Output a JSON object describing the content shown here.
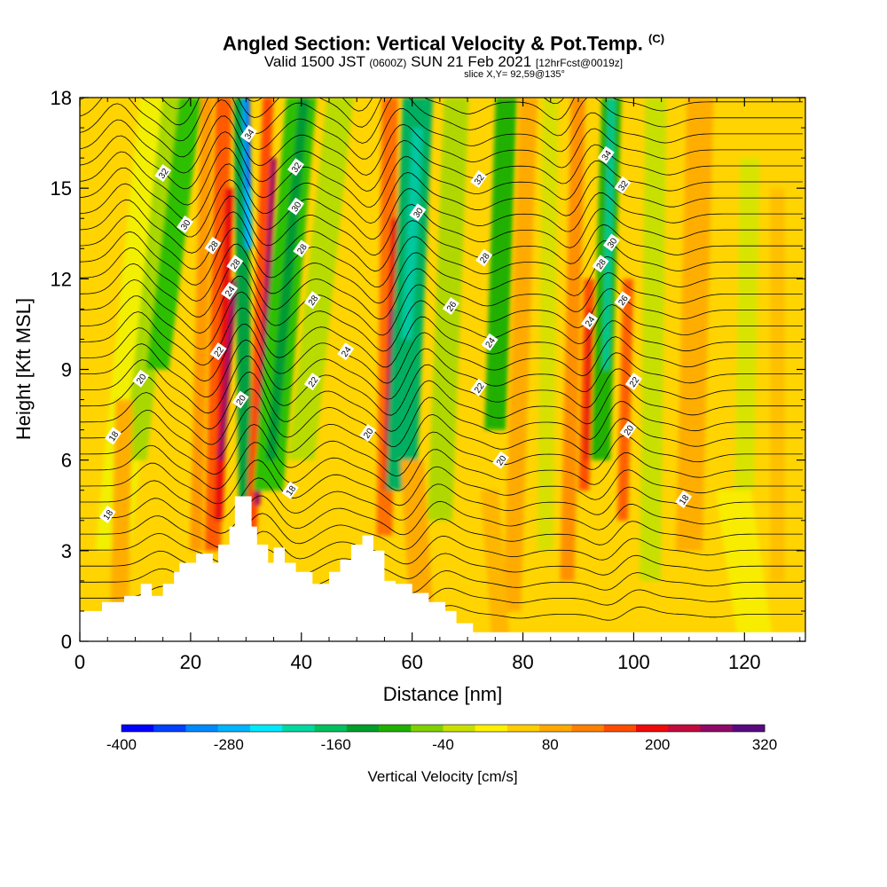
{
  "title": {
    "main": "Angled Section: Vertical Velocity & Pot.Temp.",
    "main_unit": "(C)",
    "valid_prefix": "Valid 1500 JST",
    "valid_zulu": "(0600Z)",
    "valid_date": "SUN 21 Feb 2021",
    "forecast": "[12hrFcst@0019z]",
    "slice": "slice X,Y= 92,59@135°"
  },
  "chart_data": {
    "type": "heatmap",
    "xlabel": "Distance [nm]",
    "ylabel": "Height [Kft MSL]",
    "xlim": [
      0,
      131
    ],
    "ylim": [
      0,
      18
    ],
    "x_ticks": [
      "0",
      "20",
      "40",
      "60",
      "80",
      "100",
      "120"
    ],
    "y_ticks": [
      "0",
      "3",
      "6",
      "9",
      "12",
      "15",
      "18"
    ],
    "colorbar": {
      "label": "Vertical Velocity [cm/s]",
      "tick_labels": [
        "-400",
        "-280",
        "-160",
        "-40",
        "80",
        "200",
        "320"
      ],
      "levels": [
        -400,
        -360,
        -320,
        -280,
        -240,
        -200,
        -160,
        -120,
        -80,
        -40,
        0,
        40,
        80,
        120,
        160,
        200,
        240,
        280,
        320
      ],
      "colors": [
        "#0000ff",
        "#0040ff",
        "#0088ff",
        "#00b4ff",
        "#00e8ff",
        "#00d8a0",
        "#00c060",
        "#009e2a",
        "#20b000",
        "#80d000",
        "#c8e000",
        "#fff000",
        "#ffcc00",
        "#ffa800",
        "#ff8000",
        "#ff4c00",
        "#ee0a0a",
        "#c20a3c",
        "#900a68",
        "#5a0a80"
      ]
    },
    "terrain_kft": [
      [
        0,
        1
      ],
      [
        4,
        1
      ],
      [
        4,
        1.3
      ],
      [
        8,
        1.3
      ],
      [
        8,
        1.5
      ],
      [
        11,
        1.5
      ],
      [
        11,
        1.9
      ],
      [
        13,
        1.9
      ],
      [
        13,
        1.5
      ],
      [
        15,
        1.5
      ],
      [
        15,
        1.9
      ],
      [
        17,
        1.9
      ],
      [
        17,
        2.3
      ],
      [
        18,
        2.3
      ],
      [
        18,
        2.6
      ],
      [
        21,
        2.6
      ],
      [
        21,
        2.9
      ],
      [
        24,
        2.9
      ],
      [
        24,
        2.6
      ],
      [
        25,
        2.6
      ],
      [
        25,
        3.2
      ],
      [
        27,
        3.2
      ],
      [
        27,
        3.8
      ],
      [
        28,
        3.8
      ],
      [
        28,
        4.8
      ],
      [
        31,
        4.8
      ],
      [
        31,
        3.8
      ],
      [
        32,
        3.8
      ],
      [
        32,
        3.2
      ],
      [
        34,
        3.2
      ],
      [
        34,
        2.6
      ],
      [
        35,
        2.6
      ],
      [
        35,
        3.1
      ],
      [
        37,
        3.1
      ],
      [
        37,
        2.6
      ],
      [
        39,
        2.6
      ],
      [
        39,
        2.3
      ],
      [
        42,
        2.3
      ],
      [
        42,
        1.9
      ],
      [
        45,
        1.9
      ],
      [
        45,
        2.3
      ],
      [
        47,
        2.3
      ],
      [
        47,
        2.7
      ],
      [
        49,
        2.7
      ],
      [
        49,
        3.2
      ],
      [
        51,
        3.2
      ],
      [
        51,
        3.5
      ],
      [
        53,
        3.5
      ],
      [
        53,
        3.0
      ],
      [
        55,
        3.0
      ],
      [
        55,
        2.0
      ],
      [
        57,
        2.0
      ],
      [
        57,
        1.9
      ],
      [
        60,
        1.9
      ],
      [
        60,
        1.6
      ],
      [
        63,
        1.6
      ],
      [
        63,
        1.3
      ],
      [
        66,
        1.3
      ],
      [
        66,
        1.0
      ],
      [
        68,
        1.0
      ],
      [
        68,
        0.6
      ],
      [
        71,
        0.6
      ],
      [
        71,
        0.3
      ],
      [
        131,
        0.3
      ]
    ],
    "contour_labels": [
      {
        "text": "34",
        "x": 30.5,
        "y": 16.8
      },
      {
        "text": "32",
        "x": 15,
        "y": 15.5
      },
      {
        "text": "30",
        "x": 19,
        "y": 13.8
      },
      {
        "text": "28",
        "x": 24,
        "y": 13.1
      },
      {
        "text": "28",
        "x": 28,
        "y": 12.5
      },
      {
        "text": "24",
        "x": 27,
        "y": 11.6
      },
      {
        "text": "22",
        "x": 25,
        "y": 9.6
      },
      {
        "text": "20",
        "x": 11,
        "y": 8.7
      },
      {
        "text": "18",
        "x": 6,
        "y": 6.8
      },
      {
        "text": "18",
        "x": 5,
        "y": 4.2
      },
      {
        "text": "20",
        "x": 29,
        "y": 8.0
      },
      {
        "text": "32",
        "x": 39,
        "y": 15.7
      },
      {
        "text": "30",
        "x": 39,
        "y": 14.4
      },
      {
        "text": "28",
        "x": 40,
        "y": 13.0
      },
      {
        "text": "28",
        "x": 42,
        "y": 11.3
      },
      {
        "text": "24",
        "x": 48,
        "y": 9.6
      },
      {
        "text": "22",
        "x": 42,
        "y": 8.6
      },
      {
        "text": "20",
        "x": 52,
        "y": 6.9
      },
      {
        "text": "18",
        "x": 38,
        "y": 5.0
      },
      {
        "text": "30",
        "x": 61,
        "y": 14.2
      },
      {
        "text": "32",
        "x": 72,
        "y": 15.3
      },
      {
        "text": "28",
        "x": 73,
        "y": 12.7
      },
      {
        "text": "26",
        "x": 67,
        "y": 11.1
      },
      {
        "text": "24",
        "x": 74,
        "y": 9.9
      },
      {
        "text": "22",
        "x": 72,
        "y": 8.4
      },
      {
        "text": "20",
        "x": 76,
        "y": 6.0
      },
      {
        "text": "34",
        "x": 95,
        "y": 16.1
      },
      {
        "text": "32",
        "x": 98,
        "y": 15.1
      },
      {
        "text": "30",
        "x": 96,
        "y": 13.2
      },
      {
        "text": "28",
        "x": 94,
        "y": 12.5
      },
      {
        "text": "26",
        "x": 98,
        "y": 11.3
      },
      {
        "text": "24",
        "x": 92,
        "y": 10.6
      },
      {
        "text": "22",
        "x": 100,
        "y": 8.6
      },
      {
        "text": "20",
        "x": 99,
        "y": 7.0
      },
      {
        "text": "18",
        "x": 109,
        "y": 4.7
      }
    ],
    "grid": false
  }
}
